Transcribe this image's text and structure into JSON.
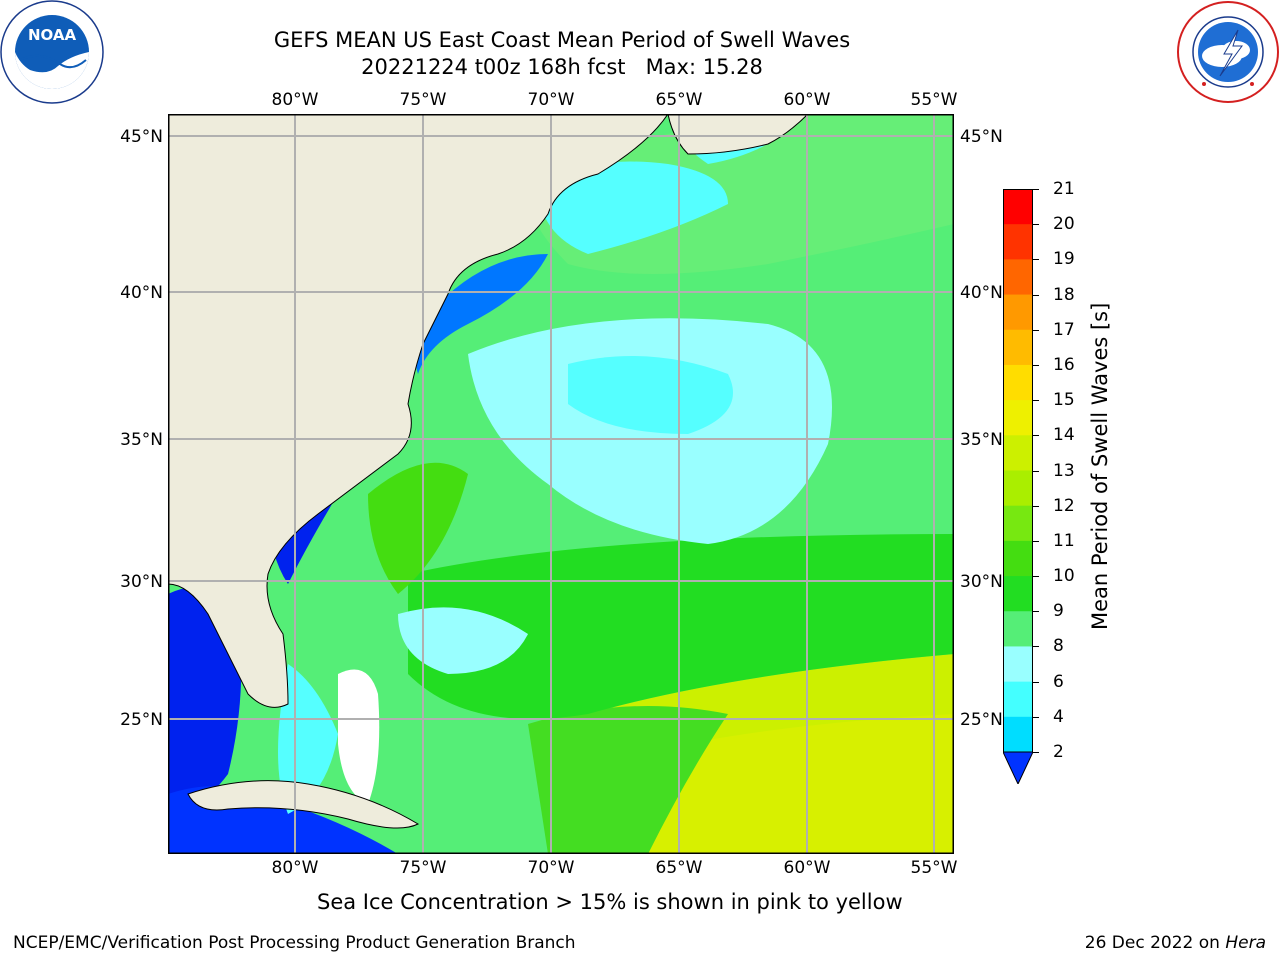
{
  "title": {
    "line1": "GEFS MEAN US East Coast Mean Period of Swell Waves",
    "line2": "20221224 t00z 168h fcst   Max: 15.28"
  },
  "logos": {
    "left": {
      "icon": "noaa-logo",
      "text": "NOAA",
      "ring_text": "NATIONAL OCEANIC AND ATMOSPHERIC ADMINISTRATION · U.S. DEPARTMENT OF COMMERCE"
    },
    "right": {
      "icon": "nws-logo",
      "ring_text": "NATIONAL WEATHER SERVICE"
    }
  },
  "map": {
    "lon_labels": [
      "80°W",
      "75°W",
      "70°W",
      "65°W",
      "60°W",
      "55°W"
    ],
    "lat_labels": [
      "45°N",
      "40°N",
      "35°N",
      "30°N",
      "25°N"
    ],
    "colors": {
      "land": "#eeecdc",
      "ocean_green": "#33dd44",
      "ocean_light_green": "#66ee77",
      "ocean_cyan": "#55ffff",
      "ocean_light_cyan": "#99ffff",
      "ocean_blue": "#0077ff",
      "ocean_deep_blue": "#0022ee",
      "ocean_yellow_green": "#ccf000",
      "grid": "#b0b0b0"
    }
  },
  "colorbar": {
    "label": "Mean Period of Swell Waves [s]",
    "ticks": [
      "2",
      "4",
      "6",
      "8",
      "9",
      "10",
      "11",
      "12",
      "13",
      "14",
      "15",
      "16",
      "17",
      "18",
      "19",
      "20",
      "21"
    ],
    "colors": [
      "#0077ff",
      "#00ddff",
      "#44ffff",
      "#99ffff",
      "#55ee77",
      "#22dd22",
      "#44dd11",
      "#77e811",
      "#aaee00",
      "#ccf000",
      "#eef000",
      "#ffdd00",
      "#ffbb00",
      "#ff9900",
      "#ff6600",
      "#ff3300",
      "#ff0000"
    ],
    "extend_color": "#0033ff"
  },
  "footer": {
    "note": "Sea Ice Concentration > 15% is shown in pink to yellow",
    "left": "NCEP/EMC/Verification Post Processing Product Generation Branch",
    "right_date": "26 Dec 2022 on ",
    "right_machine": "Hera"
  }
}
